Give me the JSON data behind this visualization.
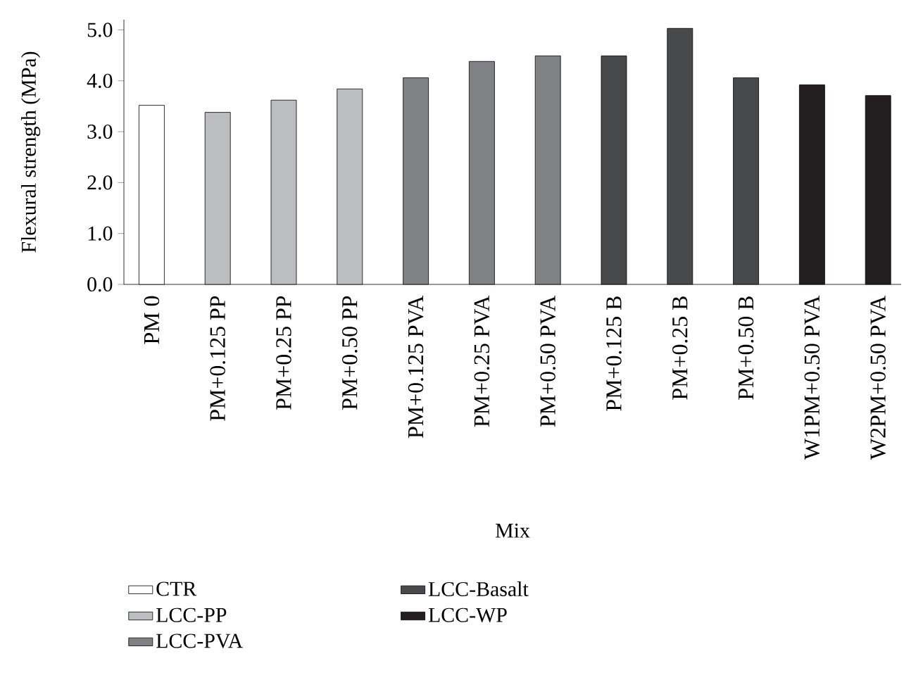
{
  "chart_data": {
    "type": "bar",
    "xlabel": "Mix",
    "ylabel": "Flexural strength (MPa)",
    "categories": [
      "PM 0",
      "PM+0.125 PP",
      "PM+0.25 PP",
      "PM+0.50 PP",
      "PM+0.125 PVA",
      "PM+0.25 PVA",
      "PM+0.50 PVA",
      "PM+0.125 B",
      "PM+0.25 B",
      "PM+0.50 B",
      "W1PM+0.50 PVA",
      "W2PM+0.50 PVA"
    ],
    "series": [
      {
        "name": "CTR",
        "color": "#ffffff",
        "values": [
          3.52,
          null,
          null,
          null,
          null,
          null,
          null,
          null,
          null,
          null,
          null,
          null
        ]
      },
      {
        "name": "LCC-PP",
        "color": "#bcbdc1",
        "values": [
          null,
          3.38,
          3.62,
          3.84,
          null,
          null,
          null,
          null,
          null,
          null,
          null,
          null
        ]
      },
      {
        "name": "LCC-PVA",
        "color": "#808185",
        "values": [
          null,
          null,
          null,
          null,
          4.06,
          4.38,
          4.49,
          null,
          null,
          null,
          null,
          null
        ]
      },
      {
        "name": "LCC-Basalt",
        "color": "#48494b",
        "values": [
          null,
          null,
          null,
          null,
          null,
          null,
          null,
          4.49,
          5.03,
          4.06,
          null,
          null
        ]
      },
      {
        "name": "LCC-WP",
        "color": "#231f20",
        "values": [
          null,
          null,
          null,
          null,
          null,
          null,
          null,
          null,
          null,
          null,
          3.92,
          3.71
        ]
      }
    ],
    "ylim": [
      0,
      5.2
    ],
    "yticks": [
      {
        "value": 0,
        "label": "0.0"
      },
      {
        "value": 1,
        "label": "1.0"
      },
      {
        "value": 2,
        "label": "2.0"
      },
      {
        "value": 3,
        "label": "3.0"
      },
      {
        "value": 4,
        "label": "4.0"
      },
      {
        "value": 5,
        "label": "5.0"
      }
    ],
    "legend": "bottom",
    "grid": false
  }
}
